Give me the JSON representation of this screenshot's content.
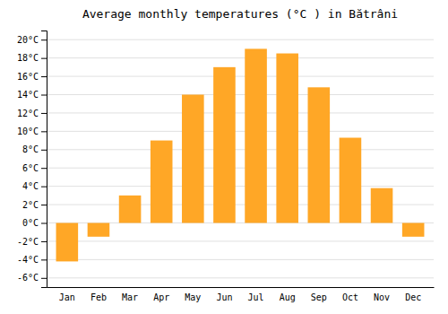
{
  "chart_data": {
    "type": "bar",
    "title": "Average monthly temperatures (°C ) in Bătrâni",
    "categories": [
      "Jan",
      "Feb",
      "Mar",
      "Apr",
      "May",
      "Jun",
      "Jul",
      "Aug",
      "Sep",
      "Oct",
      "Nov",
      "Dec"
    ],
    "values": [
      -4.2,
      -1.5,
      3.0,
      9.0,
      14.0,
      17.0,
      19.0,
      18.5,
      14.8,
      9.3,
      3.8,
      -1.5
    ],
    "color": "#FFA726",
    "ylim": [
      -7,
      21
    ],
    "yticks": [
      {
        "value": -6,
        "label": "-6°C"
      },
      {
        "value": -4,
        "label": "-4°C"
      },
      {
        "value": -2,
        "label": "-2°C"
      },
      {
        "value": 0,
        "label": "0°C"
      },
      {
        "value": 2,
        "label": "2°C"
      },
      {
        "value": 4,
        "label": "4°C"
      },
      {
        "value": 6,
        "label": "6°C"
      },
      {
        "value": 8,
        "label": "8°C"
      },
      {
        "value": 10,
        "label": "10°C"
      },
      {
        "value": 12,
        "label": "12°C"
      },
      {
        "value": 14,
        "label": "14°C"
      },
      {
        "value": 16,
        "label": "16°C"
      },
      {
        "value": 18,
        "label": "18°C"
      },
      {
        "value": 20,
        "label": "20°C"
      }
    ],
    "grid": true
  }
}
